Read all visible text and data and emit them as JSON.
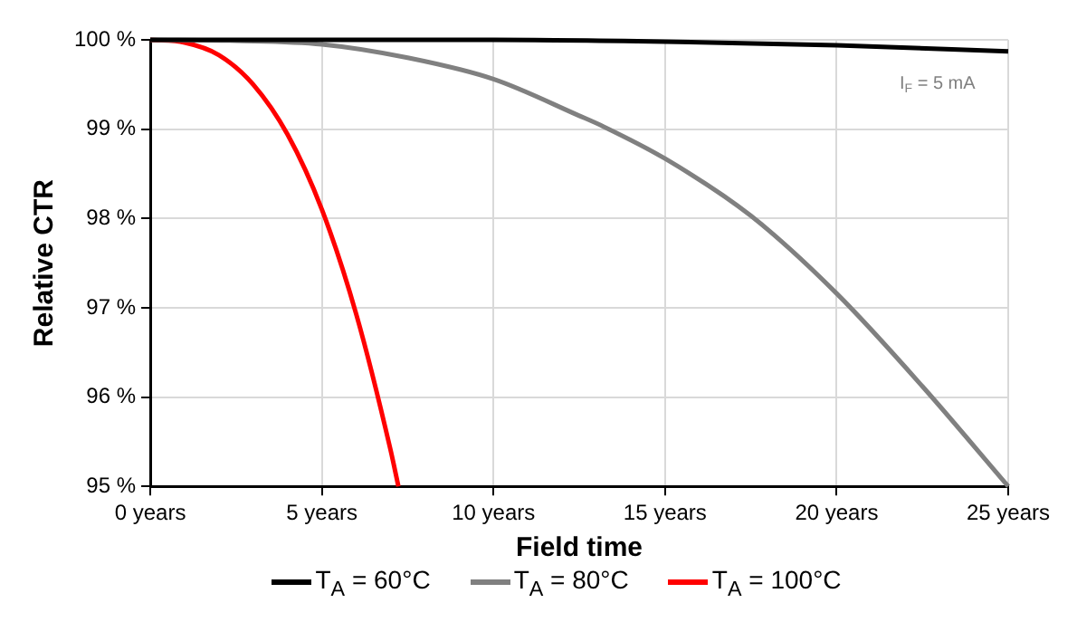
{
  "chart_data": {
    "type": "line",
    "xlabel": "Field time",
    "ylabel": "Relative CTR",
    "xlim": [
      0,
      25
    ],
    "ylim": [
      95,
      100
    ],
    "xticks": [
      {
        "value": 0,
        "label": "0 years"
      },
      {
        "value": 5,
        "label": "5 years"
      },
      {
        "value": 10,
        "label": "10 years"
      },
      {
        "value": 15,
        "label": "15 years"
      },
      {
        "value": 20,
        "label": "20 years"
      },
      {
        "value": 25,
        "label": "25 years"
      }
    ],
    "yticks": [
      {
        "value": 95,
        "label": "95 %"
      },
      {
        "value": 96,
        "label": "96 %"
      },
      {
        "value": 97,
        "label": "97 %"
      },
      {
        "value": 98,
        "label": "98 %"
      },
      {
        "value": 99,
        "label": "99 %"
      },
      {
        "value": 100,
        "label": "100 %"
      }
    ],
    "grid": true,
    "legend": "bottom",
    "marker": "none",
    "line_style": "solid",
    "annotations": [
      "I$_{F}$ = 5 mA"
    ],
    "series": [
      {
        "name": "T$_{A}$ = 60°C",
        "color": "#000000",
        "x": [
          0,
          5,
          10,
          15,
          20,
          25
        ],
        "values": [
          100,
          100,
          100,
          99.98,
          99.94,
          99.87
        ]
      },
      {
        "name": "T$_{A}$ = 80°C",
        "color": "#808080",
        "x": [
          0,
          2.5,
          5,
          7.5,
          10,
          12.5,
          13.2,
          15,
          17.5,
          20,
          22.5,
          25
        ],
        "values": [
          100,
          99.99,
          99.95,
          99.8,
          99.56,
          99.15,
          99.03,
          98.67,
          98.03,
          97.16,
          96.12,
          95
        ]
      },
      {
        "name": "T$_{A}$ = 100°C",
        "color": "#ff0000",
        "x": [
          0,
          1,
          2,
          3,
          4,
          5,
          6,
          7,
          7.23
        ],
        "values": [
          100,
          99.97,
          99.83,
          99.5,
          98.94,
          98.1,
          96.93,
          95.41,
          95
        ]
      }
    ]
  }
}
